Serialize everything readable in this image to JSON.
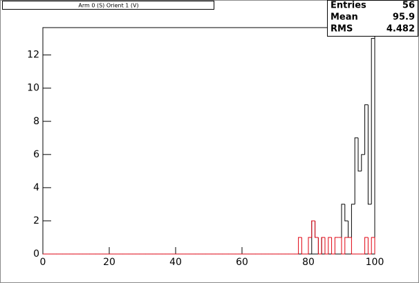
{
  "chart_data": {
    "type": "histogram",
    "title": "Arm 0 (S) Orient 1 (V)",
    "bins": [
      0,
      1,
      2,
      3,
      4,
      5,
      6,
      7,
      8,
      9,
      10,
      11,
      12,
      13,
      14,
      15,
      16,
      17,
      18,
      19,
      20,
      21,
      22,
      23,
      24,
      25,
      26,
      27,
      28,
      29,
      30,
      31,
      32,
      33,
      34,
      35,
      36,
      37,
      38,
      39,
      40,
      41,
      42,
      43,
      44,
      45,
      46,
      47,
      48,
      49,
      50,
      51,
      52,
      53,
      54,
      55,
      56,
      57,
      58,
      59,
      60,
      61,
      62,
      63,
      64,
      65,
      66,
      67,
      68,
      69,
      70,
      71,
      72,
      73,
      74,
      75,
      76,
      77,
      78,
      79,
      80,
      81,
      82,
      83,
      84,
      85,
      86,
      87,
      88,
      89,
      90,
      91,
      92,
      93,
      94,
      95,
      96,
      97,
      98,
      99,
      100
    ],
    "series": [
      {
        "color": "#000000",
        "values": [
          0,
          0,
          0,
          0,
          0,
          0,
          0,
          0,
          0,
          0,
          0,
          0,
          0,
          0,
          0,
          0,
          0,
          0,
          0,
          0,
          0,
          0,
          0,
          0,
          0,
          0,
          0,
          0,
          0,
          0,
          0,
          0,
          0,
          0,
          0,
          0,
          0,
          0,
          0,
          0,
          0,
          0,
          0,
          0,
          0,
          0,
          0,
          0,
          0,
          0,
          0,
          0,
          0,
          0,
          0,
          0,
          0,
          0,
          0,
          0,
          0,
          0,
          0,
          0,
          0,
          0,
          0,
          0,
          0,
          0,
          0,
          0,
          0,
          0,
          0,
          0,
          0,
          0,
          0,
          0,
          0,
          2,
          1,
          0,
          1,
          0,
          0,
          0,
          0,
          0,
          3,
          2,
          1,
          3,
          7,
          5,
          6,
          9,
          3,
          13
        ]
      },
      {
        "color": "#e0000f",
        "values": [
          0,
          0,
          0,
          0,
          0,
          0,
          0,
          0,
          0,
          0,
          0,
          0,
          0,
          0,
          0,
          0,
          0,
          0,
          0,
          0,
          0,
          0,
          0,
          0,
          0,
          0,
          0,
          0,
          0,
          0,
          0,
          0,
          0,
          0,
          0,
          0,
          0,
          0,
          0,
          0,
          0,
          0,
          0,
          0,
          0,
          0,
          0,
          0,
          0,
          0,
          0,
          0,
          0,
          0,
          0,
          0,
          0,
          0,
          0,
          0,
          0,
          0,
          0,
          0,
          0,
          0,
          0,
          0,
          0,
          0,
          0,
          0,
          0,
          0,
          0,
          0,
          0,
          1,
          0,
          0,
          1,
          2,
          1,
          0,
          1,
          0,
          1,
          0,
          1,
          1,
          0,
          1,
          1,
          0,
          0,
          0,
          0,
          1,
          0,
          1
        ]
      }
    ],
    "xlim": [
      0,
      100
    ],
    "xticks": [
      0,
      20,
      40,
      60,
      80,
      100
    ],
    "ylim": [
      0,
      13.65
    ],
    "yticks": [
      0,
      2,
      4,
      6,
      8,
      10,
      12
    ],
    "stats": [
      {
        "label": "Entries",
        "value": 56
      },
      {
        "label": "Mean",
        "value": 95.9
      },
      {
        "label": "RMS",
        "value": 4.482
      }
    ]
  }
}
